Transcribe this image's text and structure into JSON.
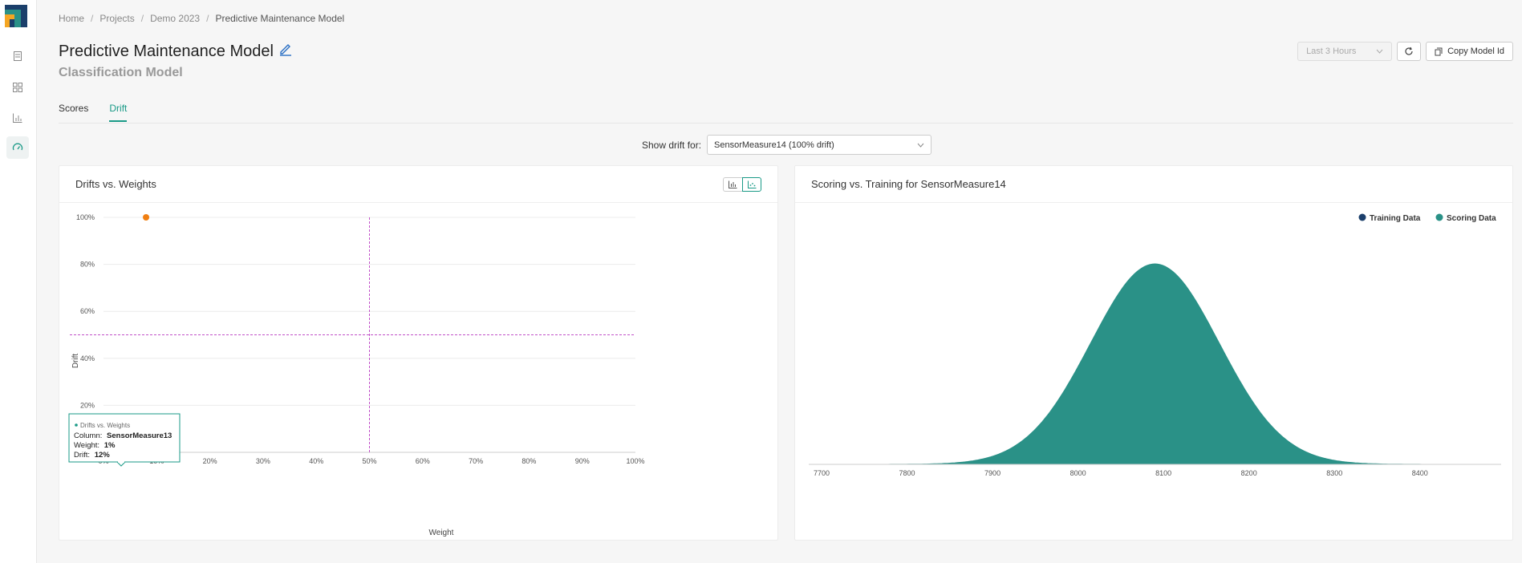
{
  "breadcrumb": {
    "home": "Home",
    "projects": "Projects",
    "project": "Demo 2023",
    "current": "Predictive Maintenance Model"
  },
  "model": {
    "title": "Predictive Maintenance Model",
    "subtitle": "Classification Model"
  },
  "actions": {
    "time_range": "Last 3 Hours",
    "copy_label": "Copy Model Id"
  },
  "tabs": [
    {
      "label": "Scores"
    },
    {
      "label": "Drift"
    }
  ],
  "drift_selector": {
    "label": "Show drift for:",
    "value": "SensorMeasure14 (100% drift)"
  },
  "colors": {
    "accent": "#1a9a87",
    "point": "#1a9a87",
    "highlight": "#f07f12",
    "threshold": "#c14fc8"
  },
  "left_panel": {
    "title": "Drifts vs. Weights",
    "tooltip": {
      "series": "Drifts vs. Weights",
      "column_label": "Column:",
      "column_value": "SensorMeasure13",
      "weight_label": "Weight:",
      "weight_value": "1%",
      "drift_label": "Drift:",
      "drift_value": "12%"
    }
  },
  "right_panel": {
    "title": "Scoring vs. Training for SensorMeasure14",
    "legend": [
      {
        "name": "Training Data",
        "color": "#1b3f6b"
      },
      {
        "name": "Scoring Data",
        "color": "#2a9187"
      }
    ]
  },
  "chart_data": [
    {
      "type": "scatter",
      "xlabel": "Weight",
      "ylabel": "Drift",
      "xlim": [
        0,
        100
      ],
      "ylim": [
        0,
        100
      ],
      "x_ticks": [
        "0%",
        "10%",
        "20%",
        "30%",
        "40%",
        "50%",
        "60%",
        "70%",
        "80%",
        "90%",
        "100%"
      ],
      "y_ticks": [
        "0%",
        "20%",
        "40%",
        "60%",
        "80%",
        "100%"
      ],
      "threshold_x": 50,
      "threshold_y": 50,
      "points": [
        {
          "x": 8,
          "y": 100,
          "highlight": true
        },
        {
          "x": 0,
          "y": 12
        },
        {
          "x": 1,
          "y": 12
        },
        {
          "x": 0,
          "y": 3
        },
        {
          "x": 2,
          "y": 5
        },
        {
          "x": 0,
          "y": 0
        },
        {
          "x": 1,
          "y": 0
        },
        {
          "x": 2,
          "y": 0
        },
        {
          "x": 3,
          "y": 0
        },
        {
          "x": 4,
          "y": 0
        },
        {
          "x": 5,
          "y": 0
        },
        {
          "x": 5,
          "y": 1
        },
        {
          "x": 0,
          "y": 1
        }
      ]
    },
    {
      "type": "area",
      "x_ticks": [
        "7700",
        "7800",
        "7900",
        "8000",
        "8100",
        "8200",
        "8300",
        "8400"
      ],
      "xlim": [
        7685,
        8495
      ],
      "series": [
        {
          "name": "Scoring Data",
          "distribution": "normal",
          "mean": 8090,
          "sd": 75
        }
      ]
    }
  ]
}
